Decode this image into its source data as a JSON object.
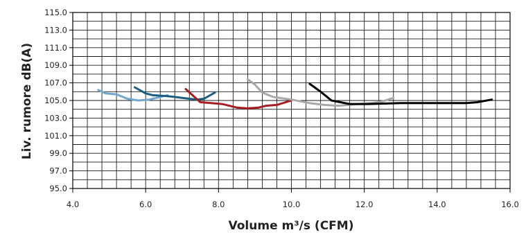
{
  "chart_data": {
    "type": "line",
    "title": "",
    "xlabel": "Volume m³/s (CFM)",
    "ylabel": "Liv. rumore dB(A)",
    "xlim": [
      4.0,
      16.0
    ],
    "ylim": [
      95.0,
      115.0
    ],
    "x_ticks": [
      "4.0",
      "6.0",
      "8.0",
      "10.0",
      "12.0",
      "14.0",
      "16.0"
    ],
    "y_ticks": [
      "95.0",
      "97.0",
      "99.0",
      "101.0",
      "103.0",
      "105.0",
      "107.0",
      "109.0",
      "111.0",
      "113.0",
      "115.0"
    ],
    "grid": true,
    "legend": "none",
    "series": [
      {
        "color": "#6FA8CC",
        "points": [
          [
            4.7,
            106.2
          ],
          [
            4.9,
            105.8
          ],
          [
            5.2,
            105.7
          ],
          [
            5.5,
            105.2
          ],
          [
            5.8,
            105.0
          ],
          [
            6.1,
            105.1
          ],
          [
            6.4,
            105.4
          ],
          [
            6.6,
            105.6
          ]
        ]
      },
      {
        "color": "#1B5D82",
        "points": [
          [
            5.7,
            106.5
          ],
          [
            6.0,
            105.8
          ],
          [
            6.2,
            105.6
          ],
          [
            6.6,
            105.5
          ],
          [
            7.0,
            105.3
          ],
          [
            7.4,
            105.1
          ],
          [
            7.6,
            105.2
          ],
          [
            7.9,
            105.9
          ]
        ]
      },
      {
        "color": "#A61E22",
        "points": [
          [
            7.1,
            106.3
          ],
          [
            7.5,
            104.8
          ],
          [
            7.8,
            104.7
          ],
          [
            8.1,
            104.6
          ],
          [
            8.5,
            104.2
          ],
          [
            8.8,
            104.1
          ],
          [
            9.1,
            104.2
          ],
          [
            9.3,
            104.4
          ],
          [
            9.6,
            104.5
          ],
          [
            10.0,
            105.0
          ]
        ]
      },
      {
        "color": "#A8A8A8",
        "points": [
          [
            8.8,
            107.4
          ],
          [
            9.0,
            106.8
          ],
          [
            9.2,
            105.9
          ],
          [
            9.5,
            105.4
          ],
          [
            10.0,
            105.1
          ],
          [
            10.5,
            104.7
          ],
          [
            10.9,
            104.5
          ],
          [
            11.3,
            104.4
          ],
          [
            11.8,
            104.6
          ],
          [
            12.2,
            104.7
          ],
          [
            12.5,
            104.9
          ],
          [
            12.8,
            105.3
          ]
        ]
      },
      {
        "color": "#000000",
        "points": [
          [
            10.5,
            106.9
          ],
          [
            10.8,
            106.0
          ],
          [
            11.1,
            105.0
          ],
          [
            11.6,
            104.6
          ],
          [
            12.1,
            104.6
          ],
          [
            13.0,
            104.7
          ],
          [
            14.0,
            104.7
          ],
          [
            14.8,
            104.7
          ],
          [
            15.1,
            104.8
          ],
          [
            15.5,
            105.1
          ]
        ]
      }
    ]
  }
}
